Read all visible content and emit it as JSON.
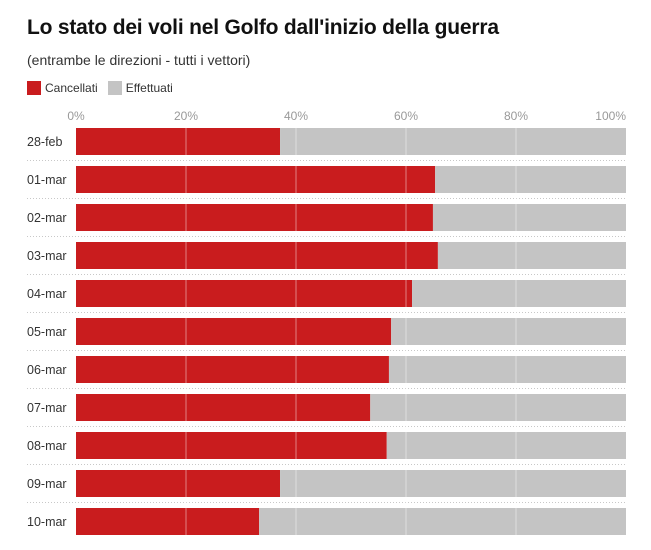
{
  "header": {
    "title": "Lo stato dei voli nel Golfo dall'inizio della guerra",
    "subtitle": "(entrambe le direzioni - tutti i vettori)"
  },
  "colors": {
    "cancellati": "#c91c1e",
    "effettuati": "#c4c4c4"
  },
  "chart_data": {
    "type": "bar",
    "orientation": "horizontal",
    "stacked": "percent",
    "title": "Lo stato dei voli nel Golfo dall'inizio della guerra",
    "subtitle": "(entrambe le direzioni - tutti i vettori)",
    "xlabel": "",
    "ylabel": "",
    "xlim": [
      0,
      100
    ],
    "x_ticks": [
      "0%",
      "20%",
      "40%",
      "60%",
      "80%",
      "100%"
    ],
    "x_tick_values": [
      0,
      20,
      40,
      60,
      80,
      100
    ],
    "grid": true,
    "legend_position": "top-left",
    "categories": [
      "28-feb",
      "01-mar",
      "02-mar",
      "03-mar",
      "04-mar",
      "05-mar",
      "06-mar",
      "07-mar",
      "08-mar",
      "09-mar",
      "10-mar"
    ],
    "series": [
      {
        "name": "Cancellati",
        "color": "#c91c1e",
        "values": [
          37.1,
          65.3,
          64.9,
          65.8,
          61.1,
          57.3,
          56.9,
          53.5,
          56.5,
          37.1,
          33.3
        ]
      },
      {
        "name": "Effettuati",
        "color": "#c4c4c4",
        "values": [
          62.9,
          34.7,
          35.1,
          34.2,
          38.9,
          42.7,
          43.1,
          46.5,
          43.5,
          62.9,
          66.7
        ]
      }
    ]
  }
}
